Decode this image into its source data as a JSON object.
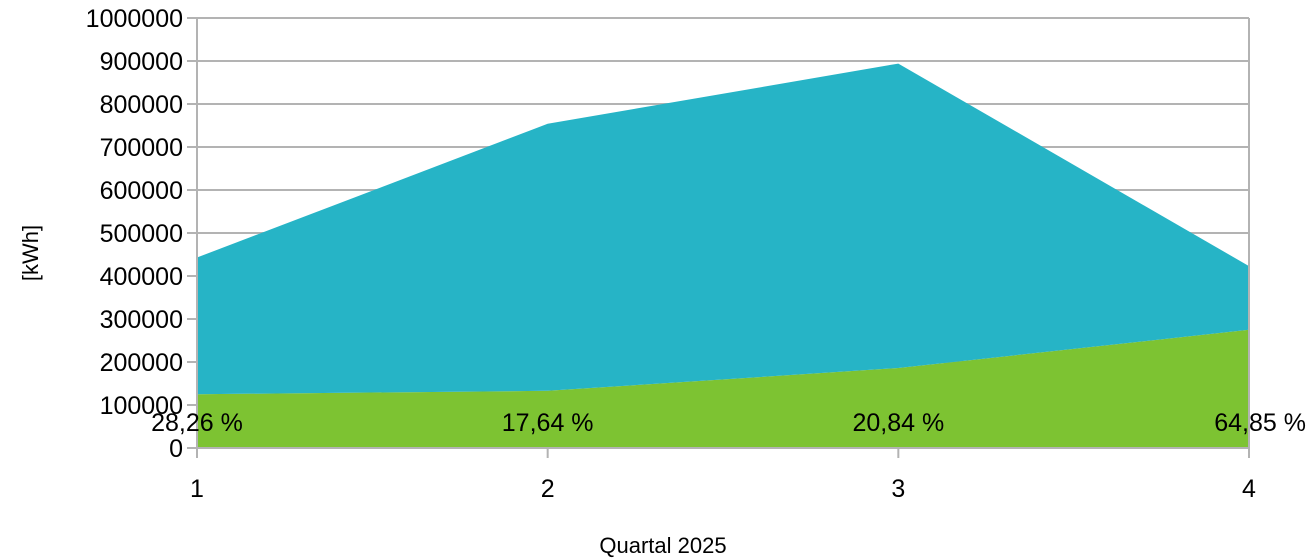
{
  "chart_data": {
    "type": "area",
    "stacked": true,
    "x": [
      "1",
      "2",
      "3",
      "4"
    ],
    "xlabel": "Quartal 2025",
    "ylabel": "[kWh]",
    "ylim": [
      0,
      1000000
    ],
    "y_ticks": [
      "0",
      "100000",
      "200000",
      "300000",
      "400000",
      "500000",
      "600000",
      "700000",
      "800000",
      "900000",
      "1000000"
    ],
    "grid": true,
    "series": [
      {
        "color": "#7DC332",
        "values": [
          125000,
          133000,
          186000,
          275000
        ]
      },
      {
        "color": "#26B4C6",
        "values": [
          318000,
          621000,
          708000,
          148000
        ]
      }
    ],
    "data_labels": [
      "28,26 %",
      "17,64 %",
      "20,84 %",
      "64,85 %"
    ]
  }
}
